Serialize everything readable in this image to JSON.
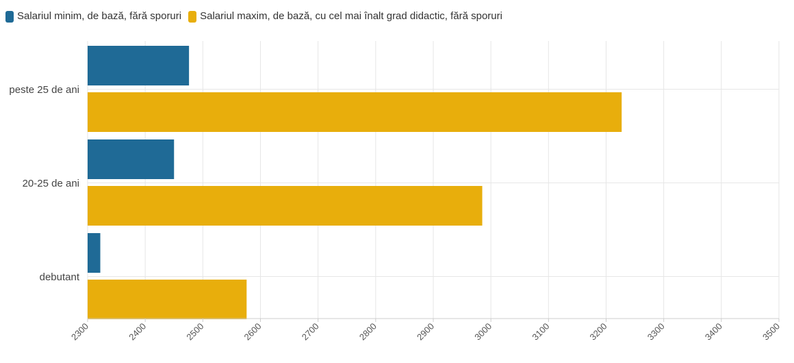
{
  "chart_data": {
    "type": "bar",
    "orientation": "horizontal",
    "categories": [
      "peste 25 de ani",
      "20-25 de ani",
      "debutant"
    ],
    "series": [
      {
        "name": "Salariul minim, de bază, fără sporuri",
        "color": "#1f6a96",
        "values": [
          2476,
          2450,
          2322
        ]
      },
      {
        "name": "Salariul maxim, de bază, cu cel mai înalt grad didactic, fără sporuri",
        "color": "#e8ae0c",
        "values": [
          3227,
          2985,
          2576
        ]
      }
    ],
    "xlim": [
      2300,
      3500
    ],
    "xticks": [
      "2300",
      "2400",
      "2500",
      "2600",
      "2700",
      "2800",
      "2900",
      "3000",
      "3100",
      "3200",
      "3300",
      "3400",
      "3500"
    ],
    "grid": true,
    "legend": "top-left"
  }
}
